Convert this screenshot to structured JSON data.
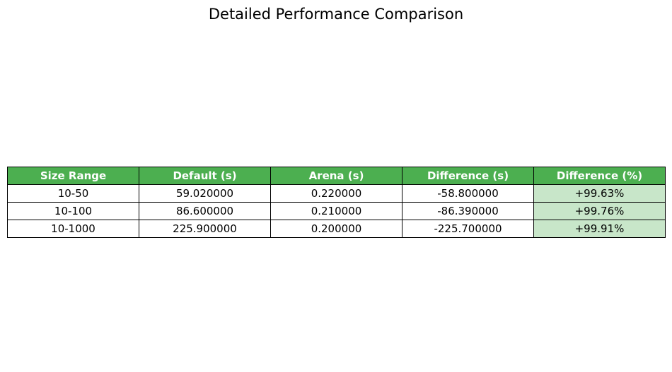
{
  "colors": {
    "header_bg": "#4caf50",
    "header_text": "#ffffff",
    "highlight_bg": "#c8e6c9",
    "border": "#000000"
  },
  "chart_data": {
    "type": "table",
    "title": "Detailed Performance Comparison",
    "columns": [
      "Size Range",
      "Default (s)",
      "Arena (s)",
      "Difference (s)",
      "Difference (%)"
    ],
    "rows": [
      [
        "10-50",
        "59.020000",
        "0.220000",
        "-58.800000",
        "+99.63%"
      ],
      [
        "10-100",
        "86.600000",
        "0.210000",
        "-86.390000",
        "+99.76%"
      ],
      [
        "10-1000",
        "225.900000",
        "0.200000",
        "-225.700000",
        "+99.91%"
      ]
    ],
    "highlighted_column": "Difference (%)"
  }
}
